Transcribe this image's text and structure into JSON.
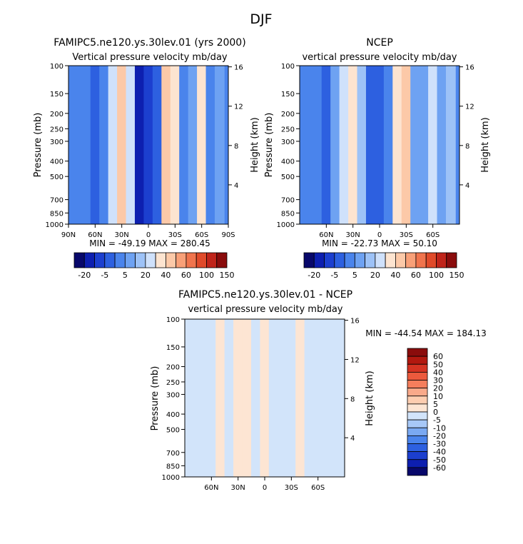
{
  "page": {
    "title": "DJF"
  },
  "colors": {
    "full_scale": [
      "#08086b",
      "#0d1fb0",
      "#1c3fcf",
      "#2d60e0",
      "#4a84ec",
      "#6ea2f2",
      "#9dc2f7",
      "#cfe1fb",
      "#fde4d0",
      "#fcc9a8",
      "#f8a078",
      "#f0744d",
      "#e04a2a",
      "#c0241a",
      "#8a0c0c"
    ],
    "diff_scale": [
      "#08086b",
      "#0d1fb0",
      "#1c3fcf",
      "#2d60e0",
      "#4a84ec",
      "#7aa9f2",
      "#a7c8f7",
      "#d2e4fa",
      "#fde5d3",
      "#fdcdb0",
      "#f9a98a",
      "#f57e5c",
      "#ec5a3d",
      "#d53322",
      "#b2180f",
      "#8a0c0c"
    ]
  },
  "chart_data": [
    {
      "type": "heatmap",
      "panel": "model",
      "title": "FAMIPC5.ne120.ys.30lev.01 (yrs 2000)",
      "subtitle": "Vertical pressure velocity mb/day",
      "ylabel": "Pressure (mb)",
      "ylabel_right": "Height (km)",
      "x_ticks": [
        "90N",
        "60N",
        "30N",
        "0",
        "30S",
        "60S",
        "90S"
      ],
      "x_range": [
        90,
        -90
      ],
      "y_ticks": [
        "100",
        "150",
        "200",
        "250",
        "300",
        "400",
        "500",
        "700",
        "850",
        "1000"
      ],
      "y_range": [
        1000,
        100
      ],
      "height_ticks": [
        "16",
        "12",
        "8",
        "4"
      ],
      "stats": "MIN = -49.19   MAX = 280.45",
      "colorbar_labels": [
        "-20",
        "-5",
        "5",
        "20",
        "40",
        "60",
        "100",
        "150"
      ],
      "colorbar_levels": [
        -50,
        -40,
        -30,
        -20,
        -10,
        -5,
        0,
        5,
        10,
        20,
        30,
        40,
        60,
        80,
        100,
        150
      ],
      "columns": [
        {
          "lat": 80,
          "v": -14
        },
        {
          "lat": 70,
          "v": -20
        },
        {
          "lat": 60,
          "v": -28
        },
        {
          "lat": 50,
          "v": -16
        },
        {
          "lat": 40,
          "v": 4
        },
        {
          "lat": 30,
          "v": 14
        },
        {
          "lat": 20,
          "v": 2
        },
        {
          "lat": 10,
          "v": -42
        },
        {
          "lat": 0,
          "v": -32
        },
        {
          "lat": -10,
          "v": -22
        },
        {
          "lat": -20,
          "v": 12
        },
        {
          "lat": -30,
          "v": 8
        },
        {
          "lat": -40,
          "v": -18
        },
        {
          "lat": -50,
          "v": -8
        },
        {
          "lat": -60,
          "v": 6
        },
        {
          "lat": -70,
          "v": -12
        },
        {
          "lat": -80,
          "v": -6
        }
      ]
    },
    {
      "type": "heatmap",
      "panel": "obs",
      "title": "NCEP",
      "subtitle": "vertical pressure velocity mb/day",
      "ylabel": "Pressure (mb)",
      "ylabel_right": "Height (km)",
      "x_ticks": [
        "60N",
        "30N",
        "0",
        "30S",
        "60S"
      ],
      "x_range": [
        90,
        -90
      ],
      "y_ticks": [
        "100",
        "150",
        "200",
        "250",
        "300",
        "400",
        "500",
        "700",
        "850",
        "1000"
      ],
      "y_range": [
        1000,
        100
      ],
      "height_ticks": [
        "16",
        "12",
        "8",
        "4"
      ],
      "stats": "MIN = -22.73   MAX =  50.10",
      "colorbar_labels": [
        "-20",
        "-5",
        "5",
        "20",
        "40",
        "60",
        "100",
        "150"
      ],
      "colorbar_levels": [
        -50,
        -40,
        -30,
        -20,
        -10,
        -5,
        0,
        5,
        10,
        20,
        30,
        40,
        60,
        80,
        100,
        150
      ],
      "columns": [
        {
          "lat": 80,
          "v": -12
        },
        {
          "lat": 70,
          "v": -18
        },
        {
          "lat": 60,
          "v": -24
        },
        {
          "lat": 50,
          "v": -10
        },
        {
          "lat": 40,
          "v": 2
        },
        {
          "lat": 30,
          "v": 8
        },
        {
          "lat": 20,
          "v": -4
        },
        {
          "lat": 10,
          "v": -30
        },
        {
          "lat": 0,
          "v": -22
        },
        {
          "lat": -10,
          "v": -14
        },
        {
          "lat": -20,
          "v": 6
        },
        {
          "lat": -30,
          "v": 10
        },
        {
          "lat": -40,
          "v": -10
        },
        {
          "lat": -50,
          "v": -6
        },
        {
          "lat": -60,
          "v": 4
        },
        {
          "lat": -70,
          "v": -8
        },
        {
          "lat": -80,
          "v": -4
        }
      ]
    },
    {
      "type": "heatmap",
      "panel": "diff",
      "title": "FAMIPC5.ne120.ys.30lev.01 - NCEP",
      "subtitle": "vertical pressure velocity mb/day",
      "ylabel": "Pressure (mb)",
      "ylabel_right": "Height (km)",
      "x_ticks": [
        "60N",
        "30N",
        "0",
        "30S",
        "60S"
      ],
      "x_range": [
        90,
        -90
      ],
      "y_ticks": [
        "100",
        "150",
        "200",
        "250",
        "300",
        "400",
        "500",
        "700",
        "850",
        "1000"
      ],
      "y_range": [
        1000,
        100
      ],
      "height_ticks": [
        "16",
        "12",
        "8",
        "4"
      ],
      "stats": "MIN = -44.54   MAX = 184.13",
      "colorbar_labels": [
        "60",
        "50",
        "40",
        "30",
        "20",
        "10",
        "5",
        "0",
        "-5",
        "-10",
        "-20",
        "-30",
        "-40",
        "-50",
        "-60"
      ],
      "colorbar_levels": [
        -60,
        -50,
        -40,
        -30,
        -20,
        -10,
        -5,
        0,
        5,
        10,
        20,
        30,
        40,
        50,
        60
      ],
      "columns": [
        {
          "lat": 80,
          "v": -2
        },
        {
          "lat": 70,
          "v": -2
        },
        {
          "lat": 60,
          "v": -1
        },
        {
          "lat": 50,
          "v": 2
        },
        {
          "lat": 40,
          "v": -3
        },
        {
          "lat": 30,
          "v": 1
        },
        {
          "lat": 20,
          "v": 2
        },
        {
          "lat": 10,
          "v": -3
        },
        {
          "lat": 0,
          "v": 4
        },
        {
          "lat": -10,
          "v": -2
        },
        {
          "lat": -20,
          "v": -3
        },
        {
          "lat": -30,
          "v": -2
        },
        {
          "lat": -40,
          "v": 2
        },
        {
          "lat": -50,
          "v": -2
        },
        {
          "lat": -60,
          "v": -1
        },
        {
          "lat": -70,
          "v": -3
        },
        {
          "lat": -80,
          "v": -1
        }
      ]
    }
  ]
}
